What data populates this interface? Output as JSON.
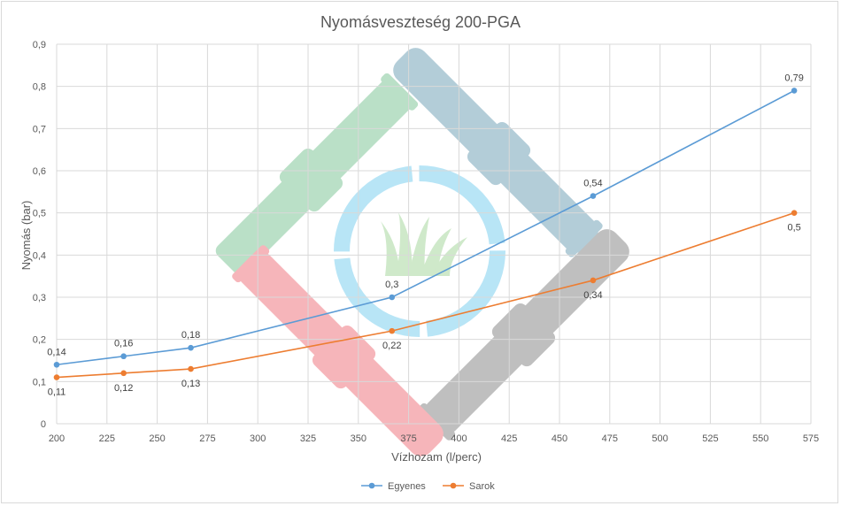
{
  "chart_data": {
    "type": "line",
    "title": "Nyomásveszteség 200-PGA",
    "xlabel": "Vízhozam (l/perc)",
    "ylabel": "Nyomás (bar)",
    "xlim": [
      200,
      575
    ],
    "ylim": [
      0,
      0.9
    ],
    "x_ticks": [
      "200",
      "225",
      "250",
      "275",
      "300",
      "325",
      "350",
      "375",
      "400",
      "425",
      "450",
      "475",
      "500",
      "525",
      "550",
      "575"
    ],
    "y_ticks": [
      "0",
      "0,1",
      "0,2",
      "0,3",
      "0,4",
      "0,5",
      "0,6",
      "0,7",
      "0,8",
      "0,9"
    ],
    "grid": true,
    "legend_position": "bottom",
    "series": [
      {
        "name": "Egyenes",
        "color": "#5b9bd5",
        "x": [
          200,
          233.3,
          266.7,
          366.7,
          466.7,
          566.7
        ],
        "y": [
          0.14,
          0.16,
          0.18,
          0.3,
          0.54,
          0.79
        ],
        "labels": [
          "0,14",
          "0,16",
          "0,18",
          "0,3",
          "0,54",
          "0,79"
        ]
      },
      {
        "name": "Sarok",
        "color": "#ed7d31",
        "x": [
          200,
          233.3,
          266.7,
          366.7,
          466.7,
          566.7
        ],
        "y": [
          0.11,
          0.12,
          0.13,
          0.22,
          0.34,
          0.5
        ],
        "labels": [
          "0,11",
          "0,12",
          "0,13",
          "0,22",
          "0,34",
          "0,5"
        ]
      }
    ]
  }
}
